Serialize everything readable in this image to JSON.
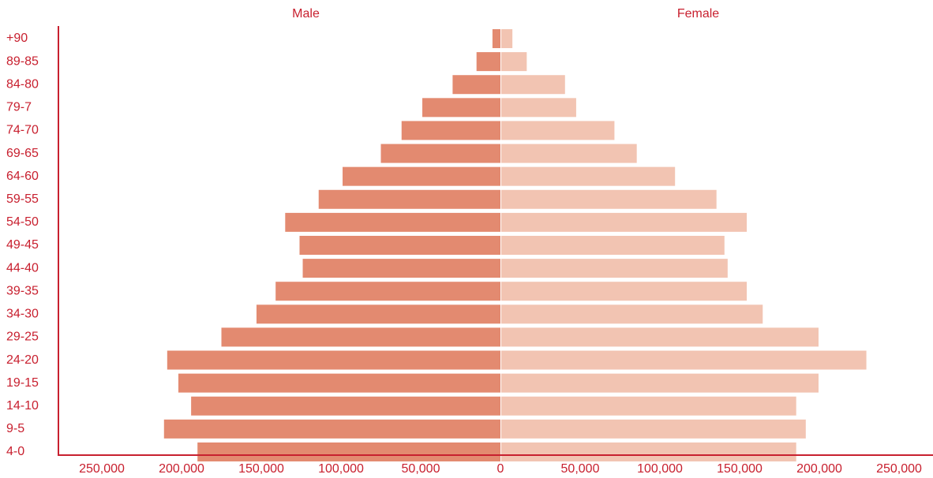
{
  "chart_data": {
    "type": "pyramid",
    "categories": [
      "+90",
      "89-85",
      "84-80",
      "79-7",
      "74-70",
      "69-65",
      "64-60",
      "59-55",
      "54-50",
      "49-45",
      "44-40",
      "39-35",
      "34-30",
      "29-25",
      "24-20",
      "19-15",
      "14-10",
      "9-5",
      "4-0"
    ],
    "series": [
      {
        "name": "Male",
        "color": "#e38a70",
        "side": "left",
        "values": [
          5000,
          15000,
          30000,
          49000,
          62000,
          75000,
          99000,
          114000,
          135000,
          126000,
          124000,
          141000,
          153000,
          175000,
          209000,
          202000,
          194000,
          211000,
          190000
        ]
      },
      {
        "name": "Female",
        "color": "#f2c4b2",
        "side": "right",
        "values": [
          7000,
          16000,
          40000,
          47000,
          71000,
          85000,
          109000,
          135000,
          154000,
          140000,
          142000,
          154000,
          164000,
          199000,
          229000,
          199000,
          185000,
          191000,
          185000
        ]
      }
    ],
    "xlim": [
      -250000,
      250000
    ],
    "xticks": [
      {
        "value": -250000,
        "label": "250,000"
      },
      {
        "value": -200000,
        "label": "200,000"
      },
      {
        "value": -150000,
        "label": "150,000"
      },
      {
        "value": -100000,
        "label": "100,000"
      },
      {
        "value": -50000,
        "label": "50,000"
      },
      0,
      {
        "value": 50000,
        "label": "50,000"
      },
      {
        "value": 100000,
        "label": "100,000"
      },
      {
        "value": 150000,
        "label": "150,000"
      },
      {
        "value": 200000,
        "label": "200,000"
      },
      {
        "value": 250000,
        "label": "250,000"
      }
    ],
    "axis_color": "#c8202f"
  }
}
